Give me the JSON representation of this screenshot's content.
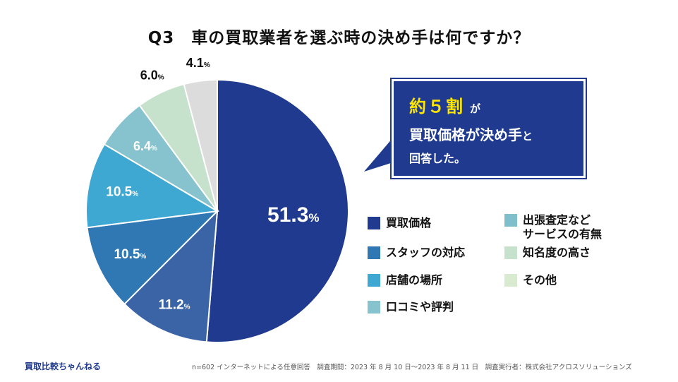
{
  "title": "Q3　車の買取業者を選ぶ時の決め手は何ですか？",
  "chart_data": {
    "type": "pie",
    "title": "Q3　車の買取業者を選ぶ時の決め手は何ですか？",
    "unit": "%",
    "slices": [
      {
        "label": "買取価格",
        "value": 51.3,
        "display": "51.3",
        "color": "#1f3a8f"
      },
      {
        "label": "スタッフの対応",
        "value": 11.2,
        "display": "11.2",
        "color": "#3a64a6"
      },
      {
        "label": "店舗の場所",
        "value": 10.5,
        "display": "10.5",
        "color": "#2f78b4"
      },
      {
        "label": "口コミや評判",
        "value": 10.5,
        "display": "10.5",
        "color": "#3ea8d2"
      },
      {
        "label": "出張査定など\nサービスの有無",
        "value": 6.4,
        "display": "6.4",
        "color": "#87c3ce"
      },
      {
        "label": "知名度の高さ",
        "value": 6.0,
        "display": "6.0",
        "color": "#c6e2cc"
      },
      {
        "label": "その他",
        "value": 4.1,
        "display": "4.1",
        "color": "#dcdcdc"
      }
    ]
  },
  "legend": [
    {
      "label": "買取価格",
      "color": "#1f3a8f"
    },
    {
      "label": "スタッフの対応",
      "color": "#2f78b4"
    },
    {
      "label": "店舗の場所",
      "color": "#3ea8d2"
    },
    {
      "label": "口コミや評判",
      "color": "#87c3ce"
    },
    {
      "label": "出張査定など\nサービスの有無",
      "color": "#7fbfcc"
    },
    {
      "label": "知名度の高さ",
      "color": "#c6e2cc"
    },
    {
      "label": "その他",
      "color": "#d8ebd0"
    }
  ],
  "callout": {
    "highlight": "約５割",
    "ga": "が",
    "line2_main": "買取価格が決め手",
    "line2_small": "と",
    "line3": "回答した。"
  },
  "footer": {
    "brand": "買取比較ちゃんねる",
    "source": "n=602 インターネットによる任意回答　調査期間：2023 年 8 月 10 日〜2023 年 8 月 11 日　調査実行者：株式会社アクロスソリューションズ"
  },
  "colors": {
    "accent": "#1f3a8f",
    "highlight": "#ffe600"
  }
}
